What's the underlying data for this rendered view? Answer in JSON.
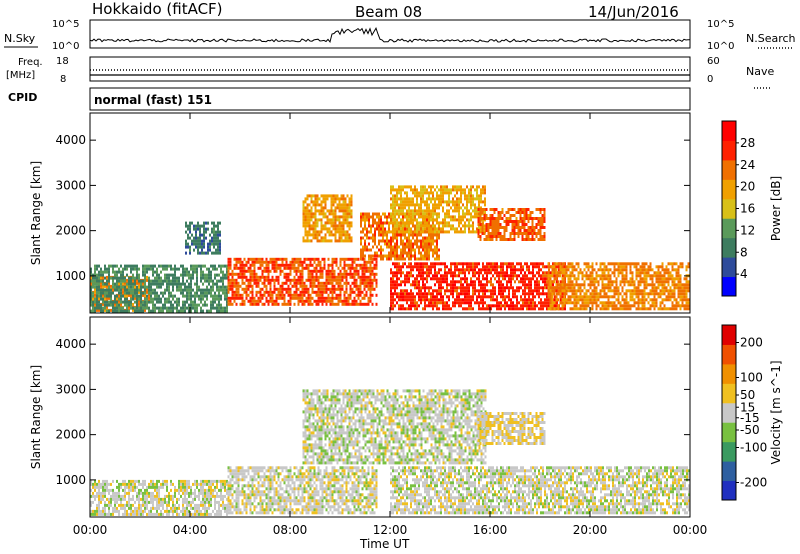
{
  "header": {
    "station": "Hokkaido (fitACF)",
    "beam": "Beam 08",
    "date": "14/Jun/2016"
  },
  "top_panels": {
    "nsky_label": "N.Sky",
    "nsearch_label": "N.Search",
    "noise_ticks_left": [
      "10^5",
      "10^0"
    ],
    "noise_ticks_right": [
      "10^5",
      "10^0"
    ],
    "freq_label_line1": "Freq.",
    "freq_label_line2": "[MHz]",
    "freq_ticks": [
      "18",
      "8"
    ],
    "nave_label": "Nave",
    "nave_ticks": [
      "60",
      "0"
    ],
    "cpid_label": "CPID",
    "cpid_text": "normal (fast) 151"
  },
  "colors": {
    "power_scale": [
      "#0000ff",
      "#2e4b9b",
      "#3d7c5f",
      "#5a9a5a",
      "#d8c018",
      "#f0a000",
      "#f07000",
      "#ff2000",
      "#ff0000"
    ],
    "velocity_scale": [
      "#2030c0",
      "#2e5fa0",
      "#3a9a60",
      "#78c040",
      "#c8c8c8",
      "#f0c020",
      "#f09000",
      "#f05000",
      "#e00000"
    ]
  },
  "chart_data": [
    {
      "type": "heatmap",
      "name_hint": "power panel",
      "xlabel": "",
      "ylabel": "Slant Range [km]",
      "x_ticks": [
        "00:00",
        "04:00",
        "08:00",
        "12:00",
        "16:00",
        "20:00",
        "00:00"
      ],
      "xlim_hours": [
        0,
        24
      ],
      "y_ticks": [
        1000,
        2000,
        3000,
        4000
      ],
      "ylim": [
        180,
        4600
      ],
      "colorbar": {
        "label": "Power [dB]",
        "ticks": [
          4,
          8,
          12,
          16,
          20,
          24,
          28
        ],
        "range": [
          0,
          32
        ]
      },
      "echo_regions": [
        {
          "t0": 0.0,
          "t1": 2.4,
          "r0": 250,
          "r1": 1000,
          "value": 22
        },
        {
          "t0": 0.0,
          "t1": 5.5,
          "r0": 200,
          "r1": 1250,
          "value": 10
        },
        {
          "t0": 3.8,
          "t1": 5.2,
          "r0": 1500,
          "r1": 2200,
          "value": 8
        },
        {
          "t0": 5.5,
          "t1": 11.5,
          "r0": 400,
          "r1": 1400,
          "value": 25
        },
        {
          "t0": 8.5,
          "t1": 10.5,
          "r0": 1800,
          "r1": 2800,
          "value": 20
        },
        {
          "t0": 10.8,
          "t1": 14.0,
          "r0": 1400,
          "r1": 2400,
          "value": 23
        },
        {
          "t0": 12.0,
          "t1": 15.8,
          "r0": 2000,
          "r1": 3000,
          "value": 19
        },
        {
          "t0": 12.0,
          "t1": 19.0,
          "r0": 300,
          "r1": 1300,
          "value": 27
        },
        {
          "t0": 15.5,
          "t1": 18.2,
          "r0": 1800,
          "r1": 2500,
          "value": 24
        },
        {
          "t0": 18.3,
          "t1": 24.0,
          "r0": 300,
          "r1": 1300,
          "value": 22
        }
      ]
    },
    {
      "type": "heatmap",
      "name_hint": "velocity panel",
      "xlabel": "Time UT",
      "ylabel": "Slant Range [km]",
      "x_ticks": [
        "00:00",
        "04:00",
        "08:00",
        "12:00",
        "16:00",
        "20:00",
        "00:00"
      ],
      "xlim_hours": [
        0,
        24
      ],
      "y_ticks": [
        1000,
        2000,
        3000,
        4000
      ],
      "ylim": [
        180,
        4600
      ],
      "colorbar": {
        "label": "Velocity [m s^-1]",
        "ticks": [
          200,
          100,
          50,
          15,
          -15,
          -50,
          -100,
          -200
        ],
        "range": [
          -250,
          250
        ]
      },
      "echo_regions": [
        {
          "t0": 0.0,
          "t1": 5.5,
          "r0": 250,
          "r1": 1000,
          "value": 0
        },
        {
          "t0": 5.5,
          "t1": 11.5,
          "r0": 300,
          "r1": 1300,
          "value": 5
        },
        {
          "t0": 8.5,
          "t1": 15.8,
          "r0": 1400,
          "r1": 3000,
          "value": -5
        },
        {
          "t0": 12.0,
          "t1": 24.0,
          "r0": 300,
          "r1": 1300,
          "value": 0
        },
        {
          "t0": 15.5,
          "t1": 18.2,
          "r0": 1800,
          "r1": 2500,
          "value": 30
        }
      ]
    }
  ]
}
